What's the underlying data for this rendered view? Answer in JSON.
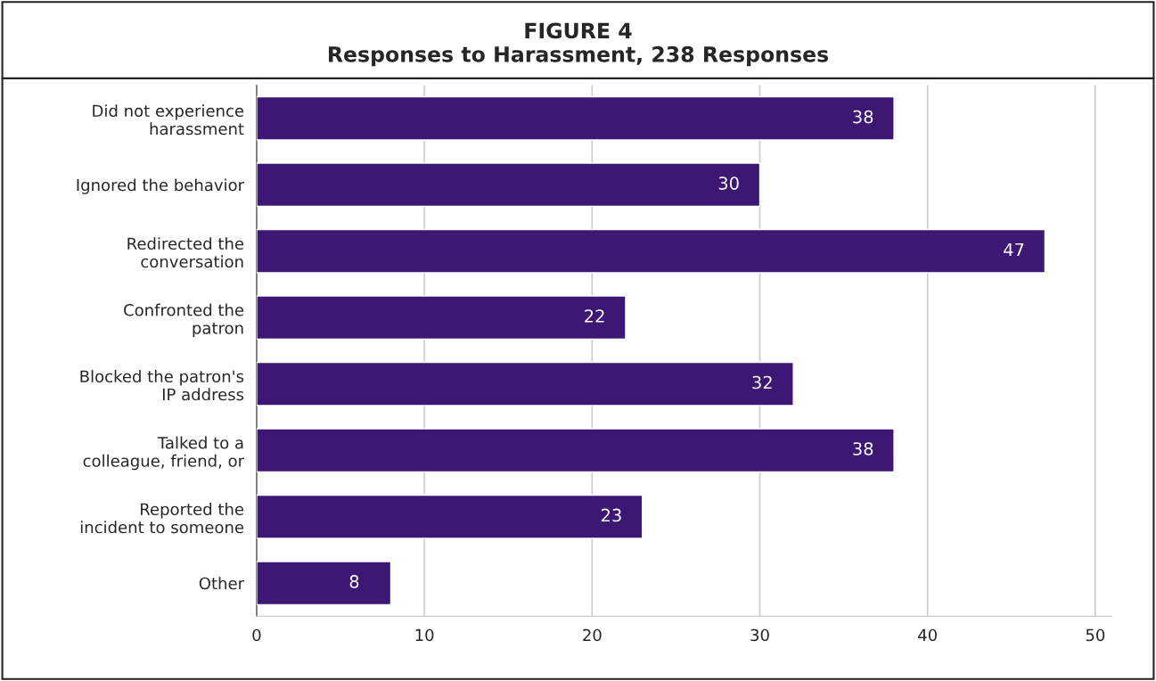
{
  "chart_data": {
    "type": "bar",
    "orientation": "horizontal",
    "title": "FIGURE 4\nResponses to Harassment, 238 Responses",
    "categories": [
      "Did not experience\nharassment",
      "Ignored the behavior",
      "Redirected the\nconversation",
      "Confronted the\npatron",
      "Blocked the patron's\nIP address",
      "Talked to a\ncolleague, friend, or",
      "Reported the\nincident to someone",
      "Other"
    ],
    "values": [
      38,
      30,
      47,
      22,
      32,
      38,
      23,
      8
    ],
    "color": "#3c1874",
    "xlim": [
      0,
      51
    ],
    "xticks": [
      0,
      10,
      20,
      30,
      40,
      50
    ],
    "grid": "x",
    "data_labels": true
  }
}
